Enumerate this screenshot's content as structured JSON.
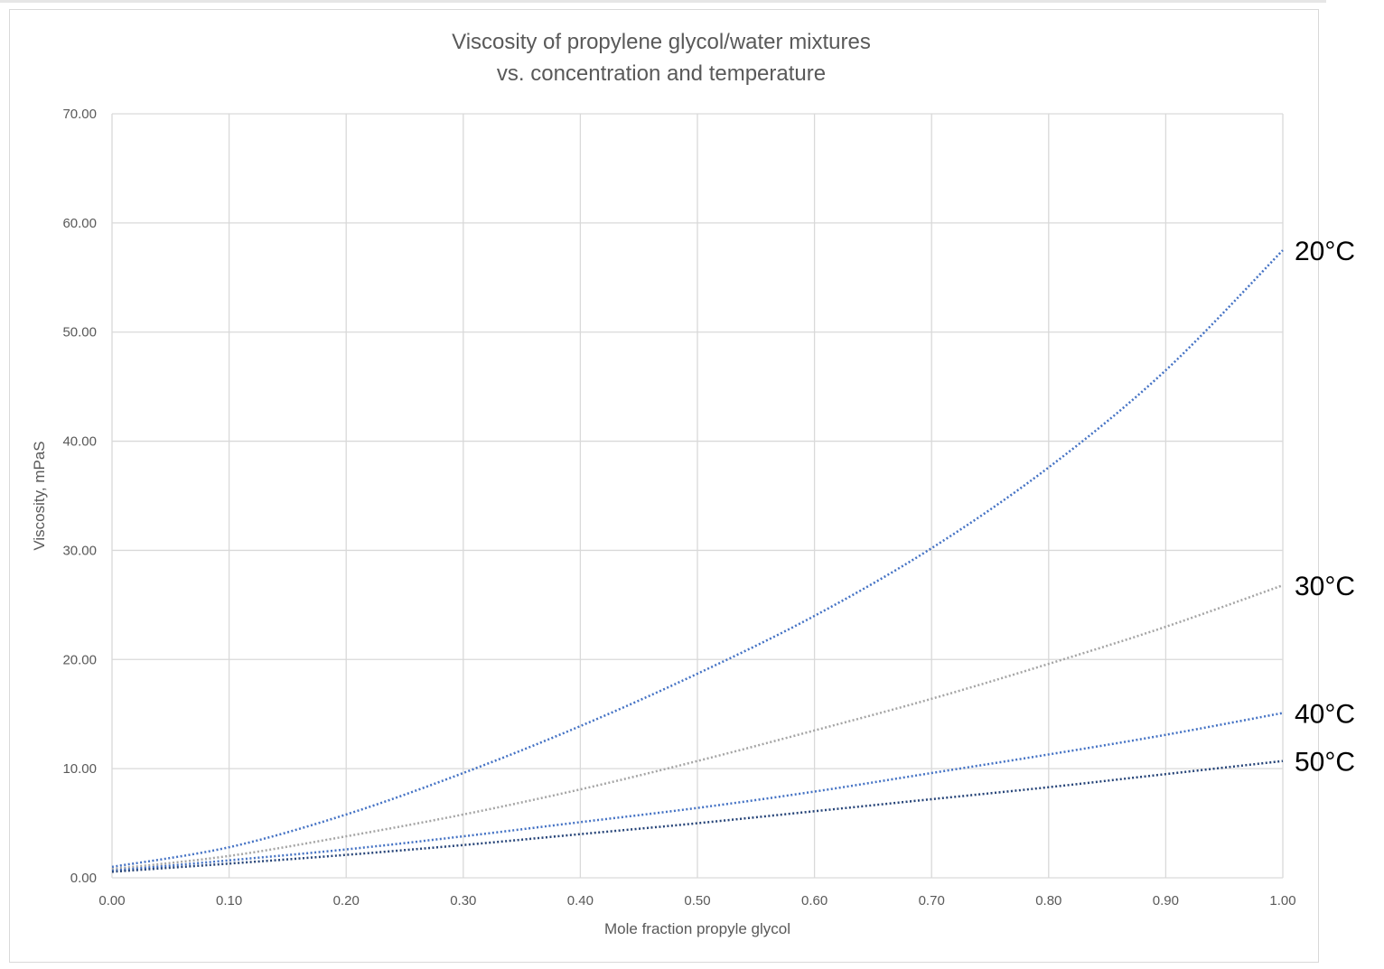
{
  "chart_data": {
    "type": "line",
    "title": "Viscosity of propylene glycol/water mixtures",
    "subtitle": "vs. concentration and temperature",
    "xlabel": "Mole fraction propyle glycol",
    "ylabel": "Viscosity, mPaS",
    "xlim": [
      0,
      1
    ],
    "ylim": [
      0,
      70
    ],
    "xticks": [
      "0.00",
      "0.10",
      "0.20",
      "0.30",
      "0.40",
      "0.50",
      "0.60",
      "0.70",
      "0.80",
      "0.90",
      "1.00"
    ],
    "yticks": [
      "0.00",
      "10.00",
      "20.00",
      "30.00",
      "40.00",
      "50.00",
      "60.00",
      "70.00"
    ],
    "grid": true,
    "line_style": "dotted",
    "x": [
      0.0,
      0.1,
      0.2,
      0.3,
      0.4,
      0.5,
      0.6,
      0.7,
      0.8,
      0.9,
      1.0
    ],
    "series": [
      {
        "name": "20°C",
        "color": "#4472c4",
        "values": [
          1.0,
          2.8,
          5.8,
          9.6,
          13.9,
          18.7,
          24.0,
          30.2,
          37.6,
          46.5,
          57.5
        ]
      },
      {
        "name": "30°C",
        "color": "#a5a5a5",
        "values": [
          0.8,
          2.0,
          3.8,
          5.8,
          8.1,
          10.7,
          13.5,
          16.4,
          19.6,
          23.0,
          26.8
        ]
      },
      {
        "name": "40°C",
        "color": "#4472c4",
        "values": [
          0.65,
          1.6,
          2.6,
          3.8,
          5.1,
          6.4,
          7.9,
          9.6,
          11.3,
          13.1,
          15.1
        ]
      },
      {
        "name": "50°C",
        "color": "#264478",
        "values": [
          0.55,
          1.3,
          2.1,
          3.0,
          4.0,
          5.0,
          6.1,
          7.2,
          8.3,
          9.5,
          10.7
        ]
      }
    ]
  }
}
